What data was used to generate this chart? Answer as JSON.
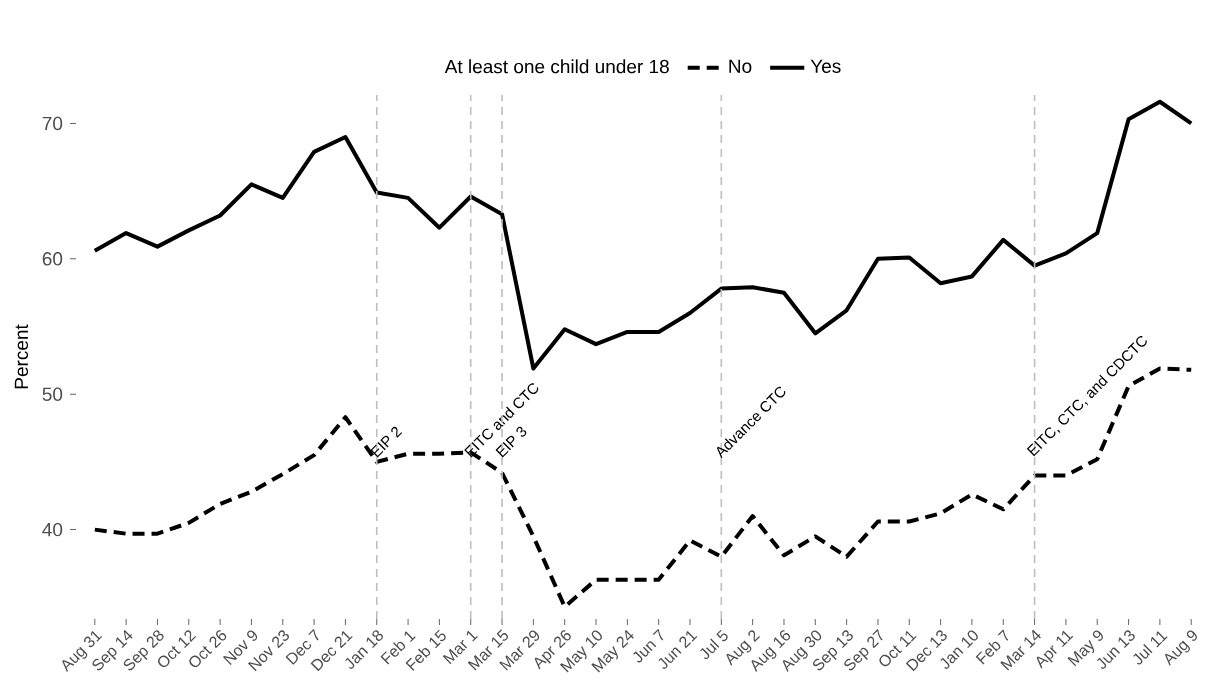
{
  "chart_data": {
    "type": "line",
    "ylabel": "Percent",
    "legend_title": "At least one child under 18",
    "legend": "top",
    "categories": [
      "Aug 31",
      "Sep 14",
      "Sep 28",
      "Oct 12",
      "Oct 26",
      "Nov 9",
      "Nov 23",
      "Dec 7",
      "Dec 21",
      "Jan 18",
      "Feb 1",
      "Feb 15",
      "Mar 1",
      "Mar 15",
      "Mar 29",
      "Apr 26",
      "May 10",
      "May 24",
      "Jun 7",
      "Jun 21",
      "Jul 5",
      "Aug 2",
      "Aug 16",
      "Aug 30",
      "Sep 13",
      "Sep 27",
      "Oct 11",
      "Dec 13",
      "Jan 10",
      "Feb 7",
      "Mar 14",
      "Apr 11",
      "May 9",
      "Jun 13",
      "Jul 11",
      "Aug 9"
    ],
    "series": [
      {
        "name": "No",
        "color": "#000000",
        "line_style": "dashed",
        "values": [
          40.0,
          39.7,
          39.7,
          40.5,
          41.9,
          42.8,
          44.1,
          45.5,
          48.3,
          45.0,
          45.6,
          45.6,
          45.7,
          44.2,
          39.5,
          34.3,
          36.3,
          36.3,
          36.3,
          39.2,
          38.0,
          41.0,
          38.1,
          39.5,
          38.0,
          40.6,
          40.6,
          41.2,
          42.6,
          41.5,
          44.0,
          44.0,
          45.2,
          50.6,
          51.9,
          51.8
        ]
      },
      {
        "name": "Yes",
        "color": "#000000",
        "line_style": "solid",
        "values": [
          60.6,
          61.9,
          60.9,
          62.1,
          63.2,
          65.5,
          64.5,
          67.9,
          69.0,
          64.9,
          64.5,
          62.3,
          64.6,
          63.3,
          51.9,
          54.8,
          53.7,
          54.6,
          54.6,
          56.0,
          57.8,
          57.9,
          57.5,
          54.5,
          56.2,
          60.0,
          60.1,
          58.2,
          58.7,
          61.4,
          59.5,
          60.4,
          61.9,
          70.3,
          71.6,
          70.0
        ]
      }
    ],
    "ylim": [
      33.4,
      72.1
    ],
    "yticks": [
      40,
      50,
      60,
      70
    ],
    "ref_lines": [
      {
        "axis": "x",
        "value": "Jan 18",
        "label": "EIP 2",
        "color": "#bebebe",
        "line_style": "dashed"
      },
      {
        "axis": "x",
        "value": "Mar 1",
        "label": "EITC and CTC",
        "color": "#bebebe",
        "line_style": "dashed"
      },
      {
        "axis": "x",
        "value": "Mar 15",
        "label": "EIP 3",
        "color": "#bebebe",
        "line_style": "dashed"
      },
      {
        "axis": "x",
        "value": "Jul 5",
        "label": "Advance CTC",
        "color": "#bebebe",
        "line_style": "dashed"
      },
      {
        "axis": "x",
        "value": "Mar 14",
        "label": "EITC, CTC, and CDCTC",
        "color": "#bebebe",
        "line_style": "dashed"
      }
    ]
  }
}
